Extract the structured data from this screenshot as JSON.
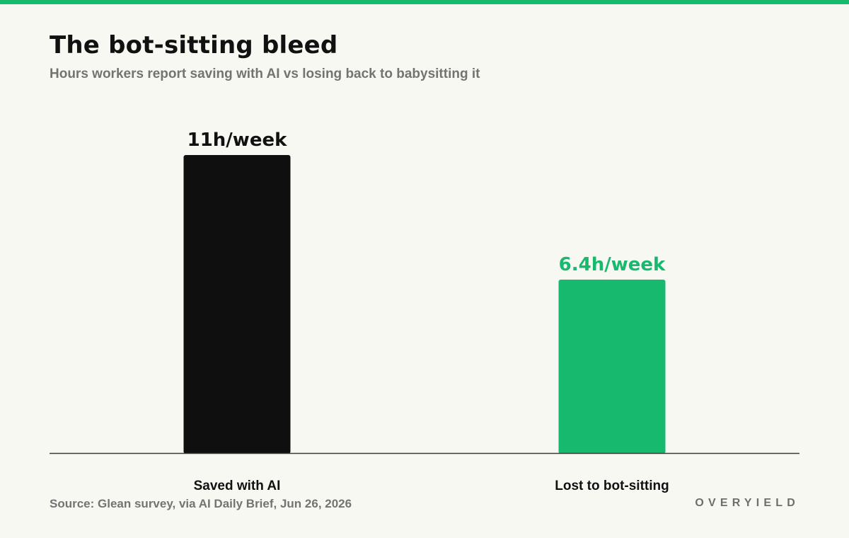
{
  "header": {
    "title": "The bot-sitting bleed",
    "subtitle": "Hours workers report saving with AI vs losing back to babysitting it"
  },
  "footer": {
    "source": "Source: Glean survey, via AI Daily Brief, Jun 26, 2026",
    "brand": "OVERYIELD"
  },
  "colors": {
    "accent": "#17b96f",
    "bar_dark": "#0f0f0f",
    "background": "#f8f8f3",
    "muted_text": "#737373"
  },
  "chart_data": {
    "type": "bar",
    "title": "The bot-sitting bleed",
    "subtitle": "Hours workers report saving with AI vs losing back to babysitting it",
    "xlabel": "",
    "ylabel": "",
    "unit": "h/week",
    "categories": [
      "Saved with AI",
      "Lost to bot-sitting"
    ],
    "values": [
      11,
      6.4
    ],
    "value_labels": [
      "11h/week",
      "6.4h/week"
    ],
    "bar_colors": [
      "#0f0f0f",
      "#17b96f"
    ],
    "ylim": [
      0,
      11
    ],
    "grid": false,
    "legend": "none"
  }
}
